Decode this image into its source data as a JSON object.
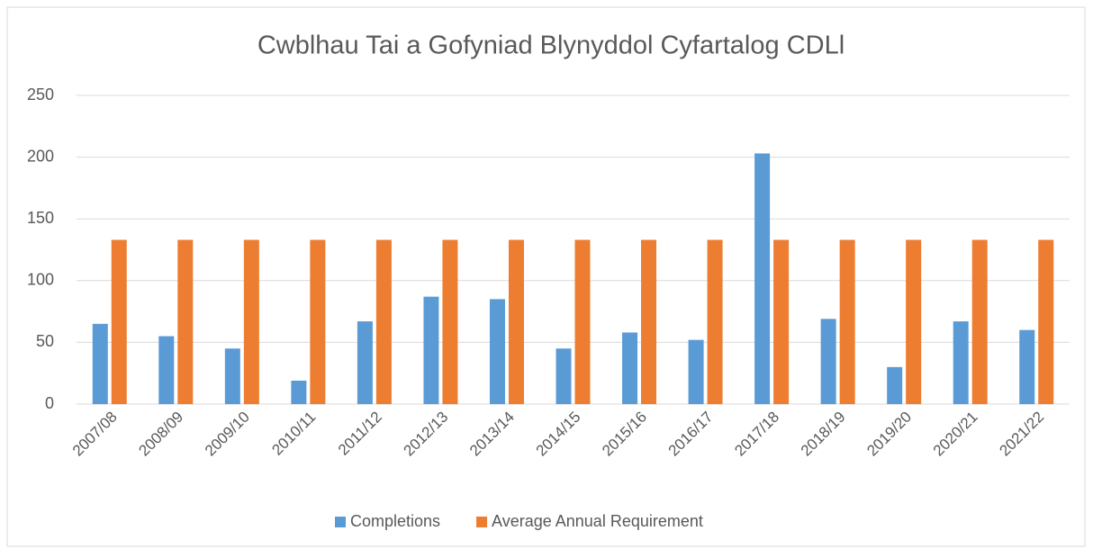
{
  "chart_data": {
    "type": "bar",
    "title": "Cwblhau Tai a Gofyniad Blynyddol Cyfartalog CDLl",
    "categories": [
      "2007/08",
      "2008/09",
      "2009/10",
      "2010/11",
      "2011/12",
      "2012/13",
      "2013/14",
      "2014/15",
      "2015/16",
      "2016/17",
      "2017/18",
      "2018/19",
      "2019/20",
      "2020/21",
      "2021/22"
    ],
    "series": [
      {
        "name": "Completions",
        "color": "#5b9bd5",
        "values": [
          65,
          55,
          45,
          19,
          67,
          87,
          85,
          45,
          58,
          52,
          203,
          69,
          30,
          67,
          60
        ]
      },
      {
        "name": "Average Annual Requirement",
        "color": "#ed7d31",
        "values": [
          133,
          133,
          133,
          133,
          133,
          133,
          133,
          133,
          133,
          133,
          133,
          133,
          133,
          133,
          133
        ]
      }
    ],
    "ylim": [
      0,
      250
    ],
    "yticks": [
      0,
      50,
      100,
      150,
      200,
      250
    ],
    "grid": true,
    "legend": "bottom"
  }
}
